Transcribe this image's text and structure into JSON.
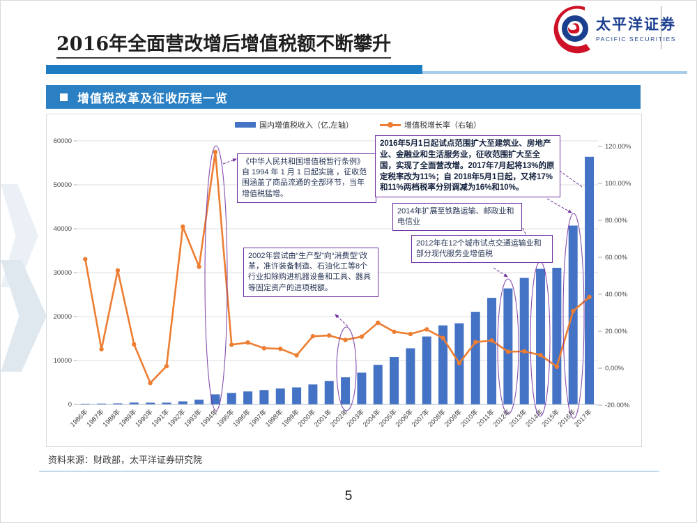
{
  "slide": {
    "title": "2016年全面营改增后增值税额不断攀升",
    "source": "资料来源：财政部，太平洋证券研究院",
    "page_number": "5"
  },
  "logo": {
    "cn": "太平洋证券",
    "en": "PACIFIC SECURITIES"
  },
  "section": {
    "heading": "增值税改革及征收历程一览"
  },
  "legend": [
    {
      "label": "国内增值税收入（亿,左轴）"
    },
    {
      "label": "增值税增长率（右轴）"
    }
  ],
  "annotations": [
    {
      "id": "note-1994",
      "text": "《中华人民共和国增值税暂行条例》自 1994 年 1 月 1 日起实施 ，征收范围涵盖了商品流通的全部环节，当年增值税猛增。"
    },
    {
      "id": "note-2002",
      "text": "2002年尝试由“生产型”向“消费型”改革，准许装备制造、石油化工等8个行业扣除购进机器设备和工具、器具等固定资产的进项税额。"
    },
    {
      "id": "note-2016",
      "text": "2016年5月1日起试点范围扩大至建筑业、房地产业、金融业和生活服务业，征收范围扩大至全国，实现了全面营改增。2017年7月起将13%的原定税率改为11%；自 2018年5月1日起，又将17%和11%两档税率分别调减为16%和10%。"
    },
    {
      "id": "note-2014",
      "text": "2014年扩展至铁路运输、邮政业和电信业"
    },
    {
      "id": "note-2012",
      "text": "2012年在12个城市试点交通运输业和部分现代服务业增值税"
    }
  ],
  "chart_data": {
    "type": "combo-bar-line",
    "title": "增值税改革及征收历程一览",
    "categories": [
      "1986年",
      "1987年",
      "1988年",
      "1989年",
      "1990年",
      "1991年",
      "1992年",
      "1993年",
      "1994年",
      "1995年",
      "1996年",
      "1997年",
      "1998年",
      "1999年",
      "2000年",
      "2001年",
      "2002年",
      "2003年",
      "2004年",
      "2005年",
      "2006年",
      "2007年",
      "2008年",
      "2009年",
      "2010年",
      "2011年",
      "2012年",
      "2013年",
      "2014年",
      "2015年",
      "2016年",
      "2017年"
    ],
    "series": [
      {
        "name": "国内增值税收入（亿,左轴）",
        "type": "bar",
        "axis": "left",
        "color": "#4472C4",
        "values": [
          165,
          201,
          250,
          432,
          400,
          414,
          706,
          1081,
          2308,
          2602,
          2963,
          3284,
          3628,
          3882,
          4553,
          5357,
          6178,
          7237,
          9018,
          10792,
          12785,
          15470,
          17997,
          18481,
          21093,
          24267,
          26416,
          28810,
          30855,
          31110,
          40712,
          56378
        ]
      },
      {
        "name": "增值税增长率（右轴）",
        "type": "line",
        "axis": "right",
        "color": "#ED7D31",
        "unit": "%",
        "values": [
          59.0,
          10.3,
          52.9,
          12.9,
          -8.0,
          1.1,
          76.6,
          54.9,
          117.0,
          12.7,
          13.9,
          10.8,
          10.5,
          7.0,
          17.3,
          17.7,
          15.3,
          17.1,
          24.6,
          19.7,
          18.5,
          21.0,
          16.3,
          2.7,
          14.1,
          15.0,
          8.9,
          9.1,
          7.1,
          0.8,
          30.9,
          38.5
        ]
      }
    ],
    "left_axis": {
      "ticks": [
        0,
        10000,
        20000,
        30000,
        40000,
        50000,
        60000
      ],
      "range": [
        0,
        60000
      ]
    },
    "right_axis": {
      "ticks": [
        120,
        100,
        80,
        60,
        40,
        20,
        0,
        -20
      ],
      "range": [
        -20,
        120
      ],
      "format": "0.00%"
    },
    "grid": true,
    "legend_position": "top",
    "highlighted_years": [
      "1994年",
      "2002年",
      "2012年",
      "2014年",
      "2016年"
    ]
  },
  "colors": {
    "bar": "#4472C4",
    "line": "#ED7D31",
    "annotation": "#7030A0",
    "band": "#2B80C4"
  }
}
